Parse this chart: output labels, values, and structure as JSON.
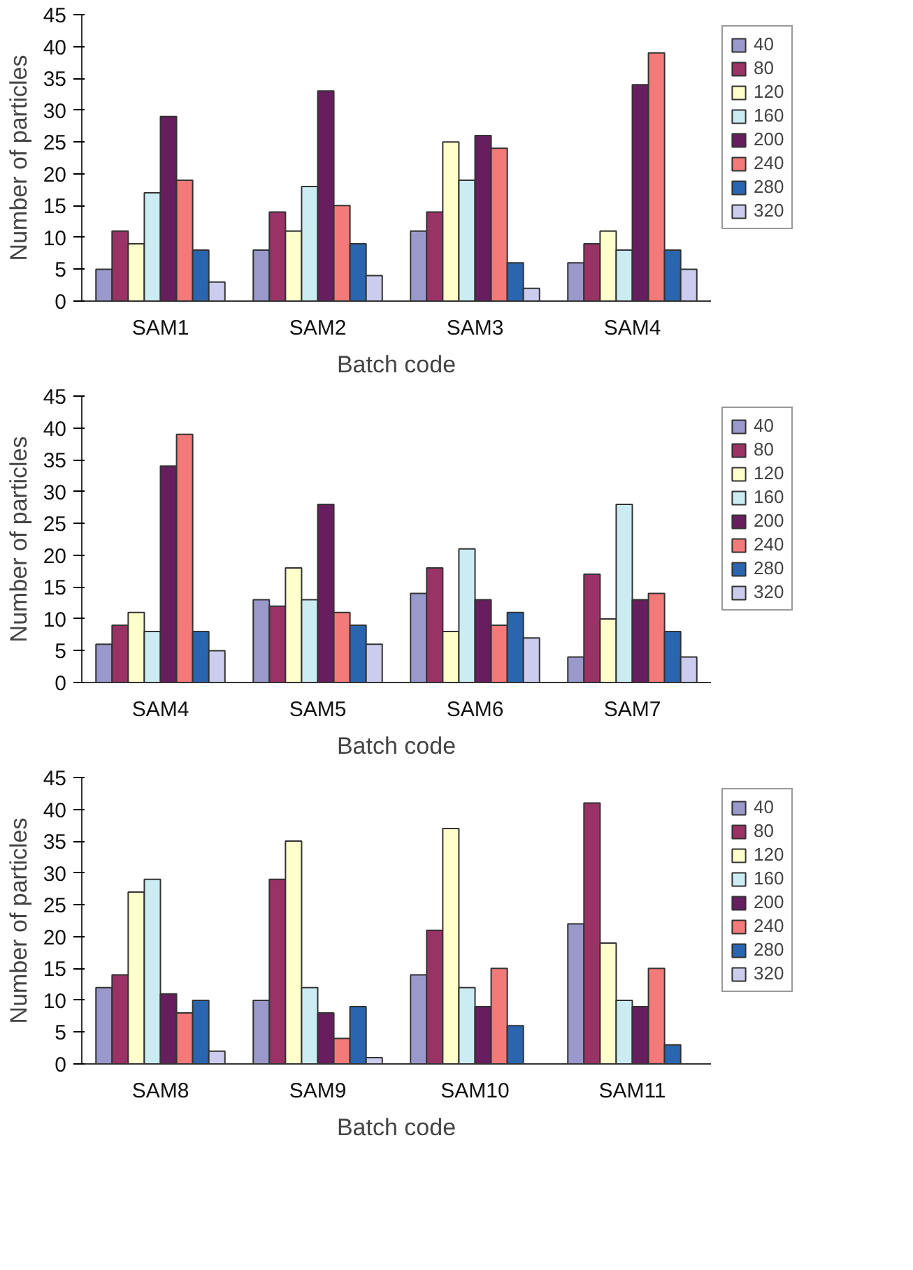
{
  "chart_data": [
    {
      "type": "bar",
      "xlabel": "Batch code",
      "ylabel": "Number of particles",
      "categories": [
        "SAM1",
        "SAM2",
        "SAM3",
        "SAM4"
      ],
      "ylim": [
        0,
        45
      ],
      "yticks": [
        0,
        5,
        10,
        15,
        20,
        25,
        30,
        35,
        40,
        45
      ],
      "grid": false,
      "legend": "right",
      "series": [
        {
          "name": "40",
          "color": "#9999cc",
          "values": [
            5,
            8,
            11,
            6
          ]
        },
        {
          "name": "80",
          "color": "#993366",
          "values": [
            11,
            14,
            14,
            9
          ]
        },
        {
          "name": "120",
          "color": "#ffffcc",
          "values": [
            9,
            11,
            25,
            11
          ]
        },
        {
          "name": "160",
          "color": "#ccecf4",
          "values": [
            17,
            18,
            19,
            8
          ]
        },
        {
          "name": "200",
          "color": "#661e5e",
          "values": [
            29,
            33,
            26,
            34
          ]
        },
        {
          "name": "240",
          "color": "#f47a7a",
          "values": [
            19,
            15,
            24,
            39
          ]
        },
        {
          "name": "280",
          "color": "#2a66b0",
          "values": [
            8,
            9,
            6,
            8
          ]
        },
        {
          "name": "320",
          "color": "#ccccee",
          "values": [
            3,
            4,
            2,
            5
          ]
        }
      ]
    },
    {
      "type": "bar",
      "xlabel": "Batch code",
      "ylabel": "Number of particles",
      "categories": [
        "SAM4",
        "SAM5",
        "SAM6",
        "SAM7"
      ],
      "ylim": [
        0,
        45
      ],
      "yticks": [
        0,
        5,
        10,
        15,
        20,
        25,
        30,
        35,
        40,
        45
      ],
      "grid": false,
      "legend": "right",
      "series": [
        {
          "name": "40",
          "color": "#9999cc",
          "values": [
            6,
            13,
            14,
            4
          ]
        },
        {
          "name": "80",
          "color": "#993366",
          "values": [
            9,
            12,
            18,
            17
          ]
        },
        {
          "name": "120",
          "color": "#ffffcc",
          "values": [
            11,
            18,
            8,
            10
          ]
        },
        {
          "name": "160",
          "color": "#ccecf4",
          "values": [
            8,
            13,
            21,
            28
          ]
        },
        {
          "name": "200",
          "color": "#661e5e",
          "values": [
            34,
            28,
            13,
            13
          ]
        },
        {
          "name": "240",
          "color": "#f47a7a",
          "values": [
            39,
            11,
            9,
            14
          ]
        },
        {
          "name": "280",
          "color": "#2a66b0",
          "values": [
            8,
            9,
            11,
            8
          ]
        },
        {
          "name": "320",
          "color": "#ccccee",
          "values": [
            5,
            6,
            7,
            4
          ]
        }
      ]
    },
    {
      "type": "bar",
      "xlabel": "Batch code",
      "ylabel": "Number of particles",
      "categories": [
        "SAM8",
        "SAM9",
        "SAM10",
        "SAM11"
      ],
      "ylim": [
        0,
        45
      ],
      "yticks": [
        0,
        5,
        10,
        15,
        20,
        25,
        30,
        35,
        40,
        45
      ],
      "grid": false,
      "legend": "right",
      "series": [
        {
          "name": "40",
          "color": "#9999cc",
          "values": [
            12,
            10,
            14,
            22
          ]
        },
        {
          "name": "80",
          "color": "#993366",
          "values": [
            14,
            29,
            21,
            41
          ]
        },
        {
          "name": "120",
          "color": "#ffffcc",
          "values": [
            27,
            35,
            37,
            19
          ]
        },
        {
          "name": "160",
          "color": "#ccecf4",
          "values": [
            29,
            12,
            12,
            10
          ]
        },
        {
          "name": "200",
          "color": "#661e5e",
          "values": [
            11,
            8,
            9,
            9
          ]
        },
        {
          "name": "240",
          "color": "#f47a7a",
          "values": [
            8,
            4,
            15,
            15
          ]
        },
        {
          "name": "280",
          "color": "#2a66b0",
          "values": [
            10,
            9,
            6,
            3
          ]
        },
        {
          "name": "320",
          "color": "#ccccee",
          "values": [
            2,
            1,
            null,
            null
          ]
        }
      ]
    }
  ]
}
